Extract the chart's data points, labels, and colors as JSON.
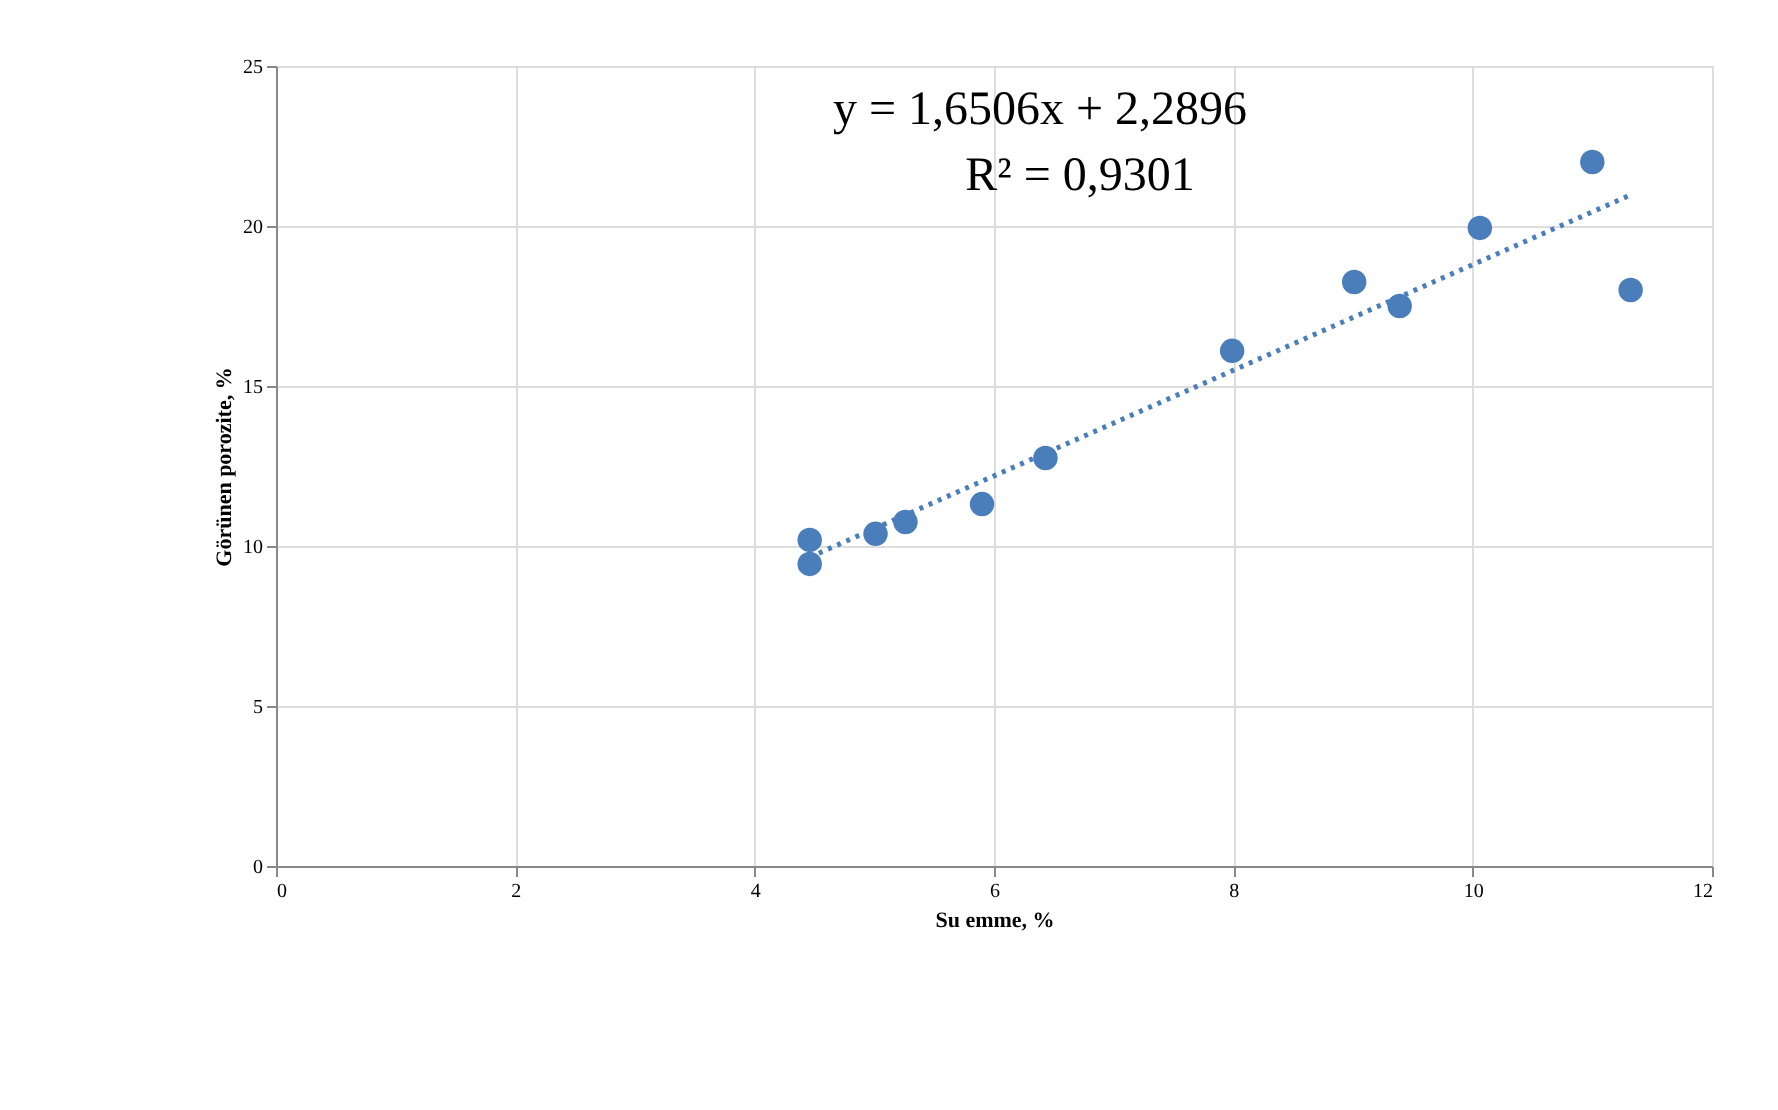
{
  "chart_data": {
    "type": "scatter",
    "xlabel": "Su  emme, %",
    "ylabel": "Görünen porozite, %",
    "xlim": [
      0,
      12
    ],
    "xticks": [
      0,
      2,
      4,
      6,
      8,
      10,
      12
    ],
    "ylim": [
      0,
      25
    ],
    "yticks": [
      0,
      5,
      10,
      15,
      20,
      25
    ],
    "grid": true,
    "annotations": [
      "y = 1,6506x + 2,2896",
      "R² = 0,9301"
    ],
    "series": [
      {
        "color": "#4a7ebb",
        "marker": "circle",
        "x": [
          4.46,
          4.46,
          5.01,
          5.26,
          5.9,
          6.43,
          7.99,
          9.01,
          9.39,
          10.06,
          11.0,
          11.32
        ],
        "values": [
          10.19,
          9.44,
          10.38,
          10.75,
          11.31,
          12.75,
          16.1,
          18.25,
          17.5,
          19.94,
          22.0,
          18.0
        ]
      },
      {
        "type": "line",
        "color": "#4a7ebb",
        "line_style": "dotted",
        "x": [
          4.46,
          11.32
        ],
        "values": [
          9.65,
          20.97
        ]
      }
    ]
  }
}
